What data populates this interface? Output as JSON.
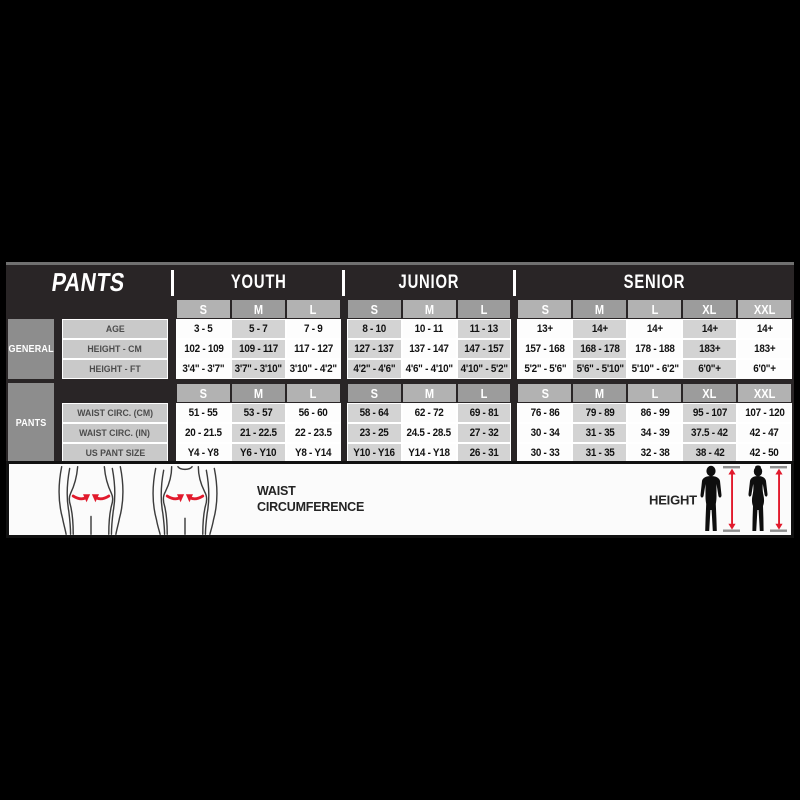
{
  "chart_data": {
    "type": "table",
    "title": "PANTS",
    "sections": [
      {
        "label": "YOUTH",
        "sizes": [
          "S",
          "M",
          "L"
        ]
      },
      {
        "label": "JUNIOR",
        "sizes": [
          "S",
          "M",
          "L"
        ]
      },
      {
        "label": "SENIOR",
        "sizes": [
          "S",
          "M",
          "L",
          "XL",
          "XXL"
        ]
      }
    ],
    "columns": [
      "Youth S",
      "Youth M",
      "Youth L",
      "Junior S",
      "Junior M",
      "Junior L",
      "Senior S",
      "Senior M",
      "Senior L",
      "Senior XL",
      "Senior XXL"
    ],
    "groups": [
      {
        "label": "GENERAL",
        "rows": [
          {
            "label": "AGE",
            "values": [
              "3 - 5",
              "5 - 7",
              "7 - 9",
              "8 - 10",
              "10 - 11",
              "11 - 13",
              "13+",
              "14+",
              "14+",
              "14+",
              "14+"
            ]
          },
          {
            "label": "HEIGHT - CM",
            "values": [
              "102 - 109",
              "109 - 117",
              "117 - 127",
              "127 - 137",
              "137 - 147",
              "147 - 157",
              "157 - 168",
              "168 - 178",
              "178 - 188",
              "183+",
              "183+"
            ]
          },
          {
            "label": "HEIGHT - FT",
            "values": [
              "3'4\" - 3'7\"",
              "3'7\" - 3'10\"",
              "3'10\" - 4'2\"",
              "4'2\" - 4'6\"",
              "4'6\" - 4'10\"",
              "4'10\" - 5'2\"",
              "5'2\" - 5'6\"",
              "5'6\" - 5'10\"",
              "5'10\" - 6'2\"",
              "6'0\"+",
              "6'0\"+"
            ]
          }
        ]
      },
      {
        "label": "PANTS",
        "rows": [
          {
            "label": "WAIST CIRC. (CM)",
            "values": [
              "51 - 55",
              "53 - 57",
              "56 - 60",
              "58 - 64",
              "62 - 72",
              "69 - 81",
              "76 - 86",
              "79 - 89",
              "86 - 99",
              "95 - 107",
              "107 - 120"
            ]
          },
          {
            "label": "WAIST CIRC. (IN)",
            "values": [
              "20 - 21.5",
              "21 - 22.5",
              "22 - 23.5",
              "23 - 25",
              "24.5 - 28.5",
              "27 - 32",
              "30 - 34",
              "31 - 35",
              "34 - 39",
              "37.5 - 42",
              "42 - 47"
            ]
          },
          {
            "label": "US PANT SIZE",
            "values": [
              "Y4 - Y8",
              "Y6 - Y10",
              "Y8 - Y14",
              "Y10 - Y16",
              "Y14 - Y18",
              "26 - 31",
              "30 - 33",
              "31 - 35",
              "32 - 38",
              "38 - 42",
              "42 - 50"
            ]
          }
        ]
      }
    ]
  },
  "legend": {
    "waist_label": "WAIST CIRCUMFERENCE",
    "height_label": "HEIGHT"
  },
  "colors": {
    "background": "#000000",
    "table_chrome": "#292526",
    "accent_red": "#e11a2c",
    "cell_white": "#fdfdfd",
    "cell_gray": "#d3d3d3",
    "header_gray_light": "#b2b2b2",
    "header_gray_dark": "#9c9c9c",
    "group_label_gray": "#8d8d8d",
    "row_label_gray": "#c9c9c9"
  }
}
